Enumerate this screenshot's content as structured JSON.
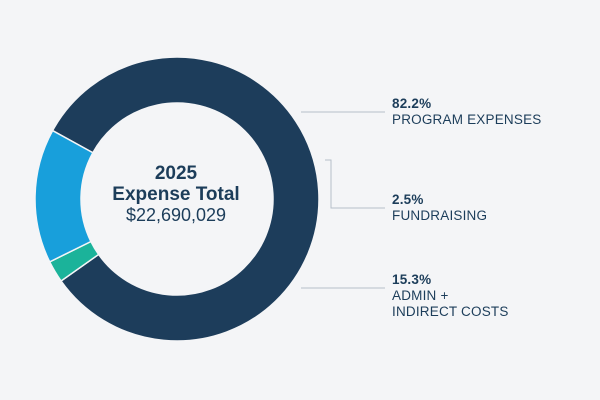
{
  "colors": {
    "program": "#1d3d5b",
    "fundraising": "#1bb39a",
    "admin": "#189fdb",
    "leader": "#b6bfc9",
    "text": "#1c3d5a"
  },
  "chart_data": {
    "type": "pie",
    "variant": "donut",
    "title": "2025 Expense Total",
    "total_label": "$22,690,029",
    "categories": [
      "PROGRAM EXPENSES",
      "FUNDRAISING",
      "ADMIN + INDIRECT COSTS"
    ],
    "values": [
      82.2,
      2.5,
      15.3
    ],
    "unit": "%",
    "legend_position": "right"
  },
  "center": {
    "year": "2025",
    "title": "Expense Total",
    "value": "$22,690,029"
  },
  "labels": {
    "program": {
      "pct": "82.2%",
      "name_lines": [
        "PROGRAM EXPENSES"
      ]
    },
    "fundraising": {
      "pct": "2.5%",
      "name_lines": [
        "FUNDRAISING"
      ]
    },
    "admin": {
      "pct": "15.3%",
      "name_lines": [
        "ADMIN +",
        "INDIRECT COSTS"
      ]
    }
  }
}
